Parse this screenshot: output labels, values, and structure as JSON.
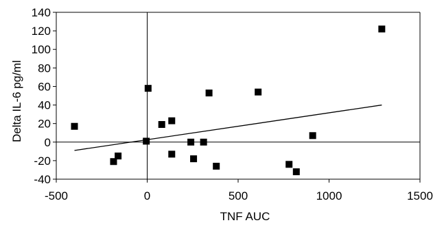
{
  "chart_data": {
    "type": "scatter",
    "title": "",
    "xlabel": "TNF AUC",
    "ylabel": "Delta IL-6 pg/ml",
    "xlim": [
      -500,
      1500
    ],
    "ylim": [
      -40,
      140
    ],
    "x_ticks": [
      -500,
      0,
      500,
      1000,
      1500
    ],
    "y_ticks": [
      -40,
      -20,
      0,
      20,
      40,
      60,
      80,
      100,
      120,
      140
    ],
    "grid": false,
    "legend": "none",
    "marker": "square",
    "marker_color": "#000000",
    "series": [
      {
        "points": [
          {
            "x": -400,
            "y": 17
          },
          {
            "x": -185,
            "y": -21
          },
          {
            "x": -160,
            "y": -15
          },
          {
            "x": -5,
            "y": 1
          },
          {
            "x": 5,
            "y": 58
          },
          {
            "x": 80,
            "y": 19
          },
          {
            "x": 135,
            "y": 23
          },
          {
            "x": 135,
            "y": -13
          },
          {
            "x": 240,
            "y": 0
          },
          {
            "x": 255,
            "y": -18
          },
          {
            "x": 310,
            "y": 0
          },
          {
            "x": 340,
            "y": 53
          },
          {
            "x": 380,
            "y": -26
          },
          {
            "x": 610,
            "y": 54
          },
          {
            "x": 780,
            "y": -24
          },
          {
            "x": 820,
            "y": -32
          },
          {
            "x": 910,
            "y": 7
          },
          {
            "x": 1290,
            "y": 122
          }
        ]
      }
    ],
    "trendline": {
      "type": "linear",
      "x_start": -400,
      "x_end": 1290,
      "y_start": -9,
      "y_end": 40
    }
  }
}
